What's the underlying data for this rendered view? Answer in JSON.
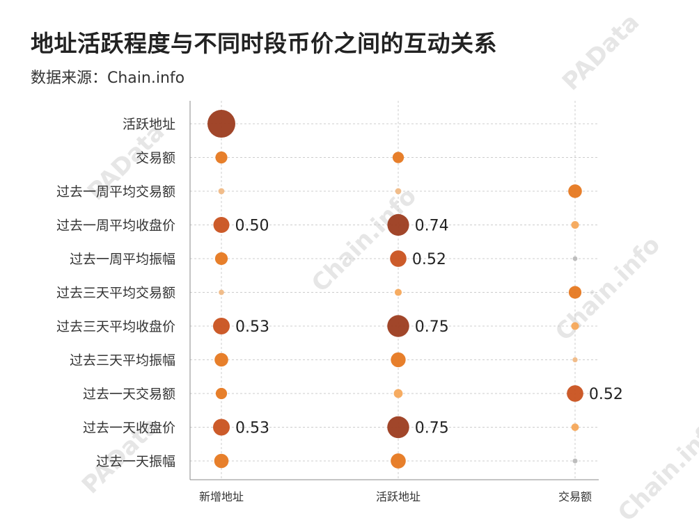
{
  "title": "地址活跃程度与不同时段币价之间的互动关系",
  "subtitle": "数据来源：Chain.info",
  "watermarks": [
    "PAData",
    "PAData",
    "Chain.info",
    "Chain.info",
    "PAData",
    "Chain.info"
  ],
  "colors": {
    "low": "#f5a85a",
    "mid": "#e67820",
    "high": "#9c3c1f",
    "grid": "#cccccc",
    "axis": "#888888",
    "text": "#333333"
  },
  "chart_data": {
    "type": "scatter",
    "title": "地址活跃程度与不同时段币价之间的互动关系",
    "x_categories": [
      "新增地址",
      "活跃地址",
      "交易额"
    ],
    "y_categories": [
      "活跃地址",
      "交易额",
      "过去一周平均交易额",
      "过去一周平均收盘价",
      "过去一周平均振幅",
      "过去三天平均交易额",
      "过去三天平均收盘价",
      "过去三天平均振幅",
      "过去一天交易额",
      "过去一天收盘价",
      "过去一天振幅"
    ],
    "matrix": [
      [
        1.0,
        null,
        null
      ],
      [
        0.33,
        0.3,
        null
      ],
      [
        0.08,
        0.08,
        0.4
      ],
      [
        0.5,
        0.74,
        0.15
      ],
      [
        0.36,
        0.52,
        0.02
      ],
      [
        0.05,
        0.12,
        0.36
      ],
      [
        0.53,
        0.75,
        0.15
      ],
      [
        0.4,
        0.45,
        0.04
      ],
      [
        0.3,
        0.2,
        0.52
      ],
      [
        0.53,
        0.75,
        0.14
      ],
      [
        0.43,
        0.46,
        0.03
      ]
    ],
    "labels": [
      {
        "row": 3,
        "col": 0,
        "text": "0.50"
      },
      {
        "row": 3,
        "col": 1,
        "text": "0.74"
      },
      {
        "row": 4,
        "col": 1,
        "text": "0.52"
      },
      {
        "row": 6,
        "col": 0,
        "text": "0.53"
      },
      {
        "row": 6,
        "col": 1,
        "text": "0.75"
      },
      {
        "row": 8,
        "col": 2,
        "text": "0.52"
      },
      {
        "row": 9,
        "col": 0,
        "text": "0.53"
      },
      {
        "row": 9,
        "col": 1,
        "text": "0.75"
      }
    ],
    "grid": true
  }
}
